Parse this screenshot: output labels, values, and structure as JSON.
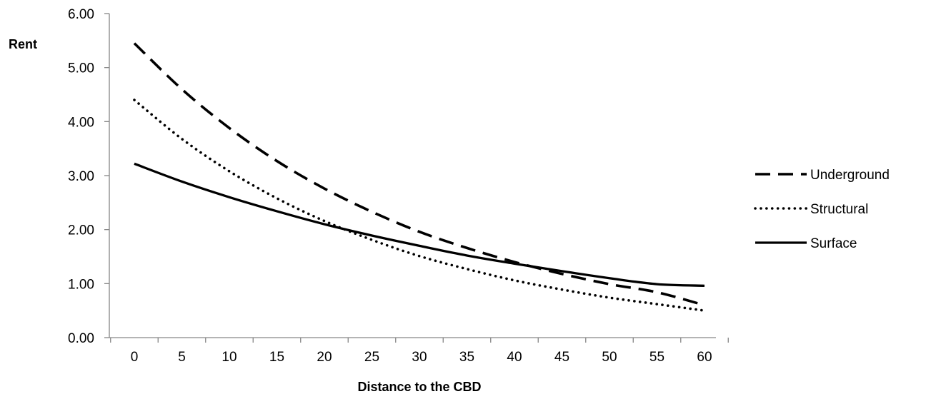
{
  "chart_data": {
    "type": "line",
    "title": "",
    "xlabel": "Distance to the CBD",
    "ylabel": "Rent",
    "xlim": [
      0,
      60
    ],
    "ylim": [
      0,
      6
    ],
    "x_ticks": [
      "0",
      "5",
      "10",
      "15",
      "20",
      "25",
      "30",
      "35",
      "40",
      "45",
      "50",
      "55",
      "60"
    ],
    "y_ticks": [
      "0.00",
      "1.00",
      "2.00",
      "3.00",
      "4.00",
      "5.00",
      "6.00"
    ],
    "grid": false,
    "legend_position": "right",
    "x": [
      0,
      5,
      10,
      15,
      20,
      25,
      30,
      35,
      40,
      45,
      50,
      55,
      60
    ],
    "series": [
      {
        "name": "Underground",
        "style": "dashed",
        "color": "#000000",
        "values": [
          5.45,
          4.6,
          3.88,
          3.27,
          2.76,
          2.33,
          1.96,
          1.66,
          1.4,
          1.18,
          0.99,
          0.84,
          0.6
        ]
      },
      {
        "name": "Structural",
        "style": "dotted",
        "color": "#000000",
        "values": [
          4.4,
          3.68,
          3.08,
          2.58,
          2.16,
          1.81,
          1.51,
          1.27,
          1.06,
          0.89,
          0.74,
          0.62,
          0.5
        ]
      },
      {
        "name": "Surface",
        "style": "solid",
        "color": "#000000",
        "values": [
          3.22,
          2.89,
          2.6,
          2.34,
          2.1,
          1.89,
          1.7,
          1.52,
          1.37,
          1.23,
          1.1,
          0.99,
          0.96
        ]
      }
    ]
  }
}
